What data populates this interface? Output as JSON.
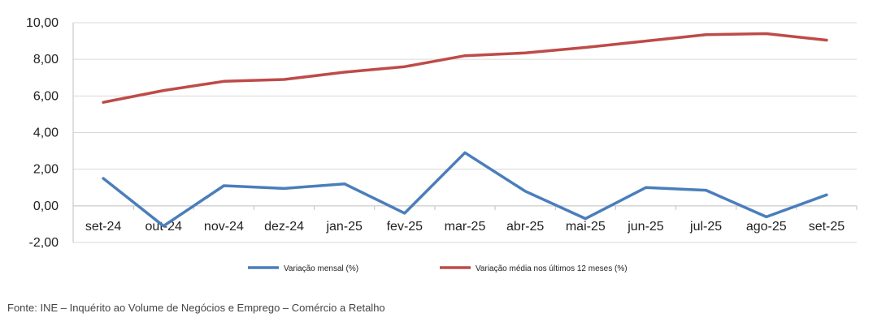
{
  "chart_data": {
    "type": "line",
    "categories": [
      "set-24",
      "out-24",
      "nov-24",
      "dez-24",
      "jan-25",
      "fev-25",
      "mar-25",
      "abr-25",
      "mai-25",
      "jun-25",
      "jul-25",
      "ago-25",
      "set-25"
    ],
    "series": [
      {
        "name": "Variação mensal (%)",
        "color": "#4a7ebb",
        "values": [
          1.5,
          -1.1,
          1.1,
          0.95,
          1.2,
          -0.4,
          2.9,
          0.8,
          -0.7,
          1.0,
          0.85,
          -0.6,
          0.6
        ]
      },
      {
        "name": "Variação média nos últimos 12 meses (%)",
        "color": "#be4b48",
        "values": [
          5.65,
          6.3,
          6.8,
          6.9,
          7.3,
          7.6,
          8.2,
          8.35,
          8.65,
          9.0,
          9.35,
          9.4,
          9.05
        ]
      }
    ],
    "yticks": [
      "10,00",
      "8,00",
      "6,00",
      "4,00",
      "2,00",
      "0,00",
      "-2,00"
    ],
    "ylim": [
      -2,
      10
    ],
    "grid": true,
    "legend_position": "bottom"
  },
  "source_note": "Fonte: INE – Inquérito ao Volume de Negócios e Emprego – Comércio a Retalho"
}
